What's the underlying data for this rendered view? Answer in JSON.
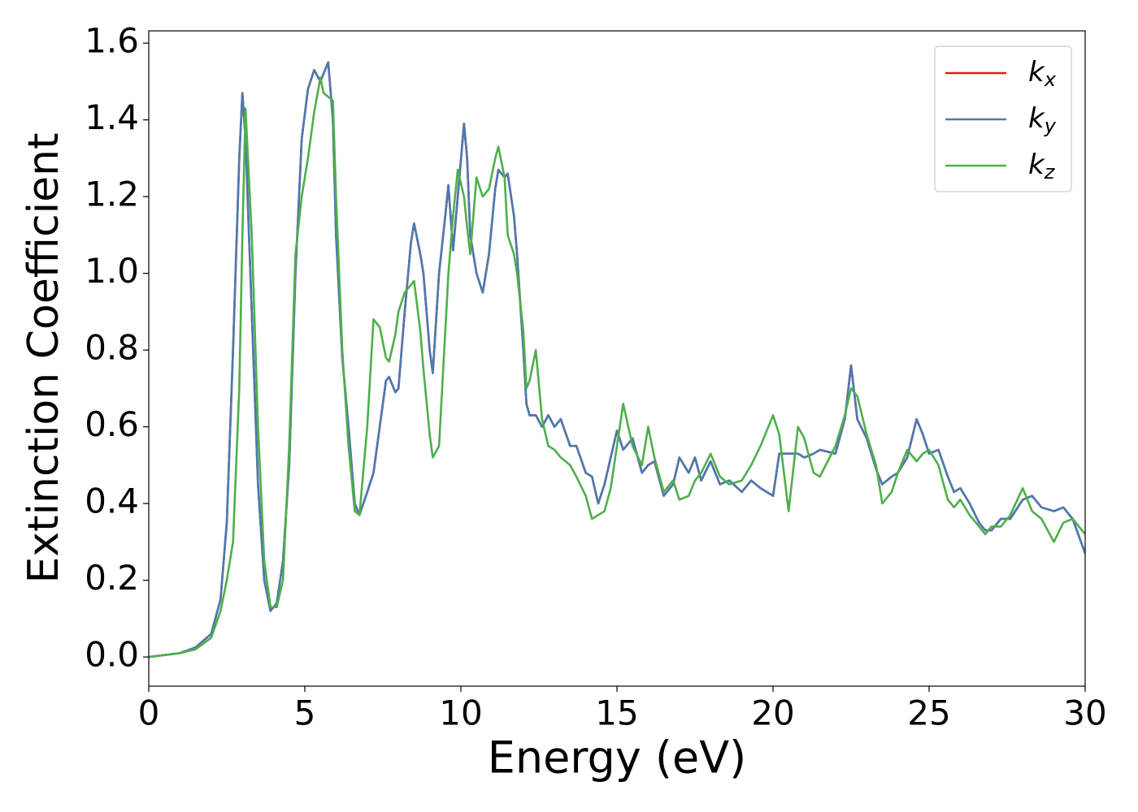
{
  "chart_data": {
    "type": "line",
    "xlabel": "Energy (eV)",
    "ylabel": "Extinction Coefficient",
    "xlim": [
      0,
      30
    ],
    "ylim": [
      -0.076,
      1.632
    ],
    "xticks": [
      0,
      5,
      10,
      15,
      20,
      25,
      30
    ],
    "yticks": [
      {
        "value": 0,
        "label": "0.0"
      },
      0.2,
      0.4,
      0.6,
      0.8,
      {
        "value": 1,
        "label": "1.0"
      },
      1.2,
      1.4,
      1.6
    ],
    "legend": "upper right",
    "x": [
      0,
      1,
      1.5,
      2,
      2.3,
      2.5,
      2.7,
      2.9,
      3.0,
      3.1,
      3.3,
      3.5,
      3.7,
      3.9,
      4.1,
      4.3,
      4.5,
      4.7,
      4.9,
      5.1,
      5.3,
      5.5,
      5.6,
      5.75,
      5.9,
      6.0,
      6.2,
      6.4,
      6.6,
      6.75,
      7.0,
      7.2,
      7.4,
      7.6,
      7.7,
      7.9,
      8.0,
      8.2,
      8.4,
      8.5,
      8.7,
      8.8,
      9.0,
      9.1,
      9.3,
      9.5,
      9.6,
      9.75,
      9.9,
      10.1,
      10.2,
      10.3,
      10.5,
      10.7,
      10.9,
      11.1,
      11.2,
      11.4,
      11.5,
      11.7,
      11.8,
      12.0,
      12.1,
      12.2,
      12.4,
      12.6,
      12.8,
      13.0,
      13.2,
      13.5,
      13.7,
      14.0,
      14.2,
      14.4,
      14.6,
      14.8,
      15.0,
      15.2,
      15.5,
      15.8,
      16.0,
      16.2,
      16.5,
      16.8,
      17.0,
      17.3,
      17.5,
      17.7,
      18.0,
      18.3,
      18.6,
      19.0,
      19.3,
      19.6,
      20.0,
      20.2,
      20.5,
      20.8,
      21.0,
      21.3,
      21.5,
      22.0,
      22.3,
      22.5,
      22.7,
      23.0,
      23.3,
      23.5,
      23.8,
      24.0,
      24.3,
      24.6,
      24.8,
      25.0,
      25.3,
      25.6,
      25.8,
      26.0,
      26.3,
      26.6,
      26.8,
      27.0,
      27.3,
      27.6,
      28.0,
      28.3,
      28.6,
      29.0,
      29.3,
      29.6,
      30.0
    ],
    "series": [
      {
        "name": "kx",
        "color": "#e41a1c",
        "values": [
          0,
          0.01,
          0.025,
          0.06,
          0.15,
          0.35,
          0.8,
          1.3,
          1.47,
          1.35,
          0.9,
          0.45,
          0.2,
          0.12,
          0.14,
          0.25,
          0.5,
          1.0,
          1.35,
          1.48,
          1.53,
          1.5,
          1.52,
          1.55,
          1.4,
          1.1,
          0.78,
          0.6,
          0.4,
          0.37,
          0.43,
          0.48,
          0.6,
          0.72,
          0.73,
          0.69,
          0.7,
          0.9,
          1.08,
          1.13,
          1.05,
          1.0,
          0.8,
          0.74,
          1.0,
          1.15,
          1.23,
          1.06,
          1.2,
          1.39,
          1.3,
          1.1,
          1.0,
          0.95,
          1.05,
          1.22,
          1.27,
          1.25,
          1.26,
          1.15,
          1.05,
          0.8,
          0.66,
          0.63,
          0.63,
          0.6,
          0.63,
          0.6,
          0.62,
          0.55,
          0.55,
          0.48,
          0.47,
          0.4,
          0.45,
          0.52,
          0.59,
          0.54,
          0.57,
          0.48,
          0.5,
          0.51,
          0.42,
          0.45,
          0.52,
          0.48,
          0.52,
          0.46,
          0.51,
          0.45,
          0.46,
          0.43,
          0.46,
          0.44,
          0.42,
          0.53,
          0.53,
          0.53,
          0.52,
          0.53,
          0.54,
          0.53,
          0.62,
          0.76,
          0.62,
          0.57,
          0.49,
          0.45,
          0.47,
          0.48,
          0.52,
          0.62,
          0.58,
          0.53,
          0.54,
          0.47,
          0.43,
          0.44,
          0.4,
          0.35,
          0.33,
          0.33,
          0.36,
          0.36,
          0.41,
          0.42,
          0.39,
          0.38,
          0.39,
          0.36,
          0.27
        ]
      },
      {
        "name": "ky",
        "color": "#4a7ab0",
        "values": [
          0,
          0.01,
          0.025,
          0.06,
          0.15,
          0.35,
          0.8,
          1.3,
          1.47,
          1.35,
          0.9,
          0.45,
          0.2,
          0.12,
          0.14,
          0.25,
          0.5,
          1.0,
          1.35,
          1.48,
          1.53,
          1.5,
          1.52,
          1.55,
          1.4,
          1.1,
          0.78,
          0.6,
          0.4,
          0.37,
          0.43,
          0.48,
          0.6,
          0.72,
          0.73,
          0.69,
          0.7,
          0.9,
          1.08,
          1.13,
          1.05,
          1.0,
          0.8,
          0.74,
          1.0,
          1.15,
          1.23,
          1.06,
          1.2,
          1.39,
          1.3,
          1.1,
          1.0,
          0.95,
          1.05,
          1.22,
          1.27,
          1.25,
          1.26,
          1.15,
          1.05,
          0.8,
          0.66,
          0.63,
          0.63,
          0.6,
          0.63,
          0.6,
          0.62,
          0.55,
          0.55,
          0.48,
          0.47,
          0.4,
          0.45,
          0.52,
          0.59,
          0.54,
          0.57,
          0.48,
          0.5,
          0.51,
          0.42,
          0.45,
          0.52,
          0.48,
          0.52,
          0.46,
          0.51,
          0.45,
          0.46,
          0.43,
          0.46,
          0.44,
          0.42,
          0.53,
          0.53,
          0.53,
          0.52,
          0.53,
          0.54,
          0.53,
          0.62,
          0.76,
          0.62,
          0.57,
          0.49,
          0.45,
          0.47,
          0.48,
          0.52,
          0.62,
          0.58,
          0.53,
          0.54,
          0.47,
          0.43,
          0.44,
          0.4,
          0.35,
          0.33,
          0.33,
          0.36,
          0.36,
          0.41,
          0.42,
          0.39,
          0.38,
          0.39,
          0.36,
          0.27
        ]
      },
      {
        "name": "kz",
        "color": "#4daf4a",
        "values": [
          0,
          0.01,
          0.02,
          0.05,
          0.12,
          0.2,
          0.3,
          0.7,
          1.1,
          1.43,
          1.1,
          0.6,
          0.25,
          0.13,
          0.13,
          0.2,
          0.55,
          1.05,
          1.2,
          1.3,
          1.42,
          1.51,
          1.47,
          1.46,
          1.45,
          1.2,
          0.8,
          0.55,
          0.38,
          0.37,
          0.6,
          0.88,
          0.86,
          0.78,
          0.77,
          0.84,
          0.9,
          0.95,
          0.97,
          0.98,
          0.85,
          0.75,
          0.58,
          0.52,
          0.55,
          0.85,
          1.0,
          1.15,
          1.27,
          1.2,
          1.12,
          1.05,
          1.25,
          1.2,
          1.22,
          1.3,
          1.33,
          1.25,
          1.1,
          1.05,
          1.0,
          0.85,
          0.7,
          0.72,
          0.8,
          0.62,
          0.55,
          0.54,
          0.52,
          0.5,
          0.47,
          0.42,
          0.36,
          0.37,
          0.38,
          0.44,
          0.55,
          0.66,
          0.55,
          0.5,
          0.6,
          0.52,
          0.43,
          0.46,
          0.41,
          0.42,
          0.46,
          0.48,
          0.53,
          0.47,
          0.45,
          0.46,
          0.5,
          0.55,
          0.63,
          0.58,
          0.38,
          0.6,
          0.57,
          0.48,
          0.47,
          0.55,
          0.63,
          0.7,
          0.68,
          0.58,
          0.5,
          0.4,
          0.43,
          0.48,
          0.54,
          0.51,
          0.53,
          0.54,
          0.5,
          0.41,
          0.39,
          0.41,
          0.37,
          0.34,
          0.32,
          0.34,
          0.34,
          0.37,
          0.44,
          0.38,
          0.36,
          0.3,
          0.35,
          0.36,
          0.32
        ]
      }
    ]
  }
}
